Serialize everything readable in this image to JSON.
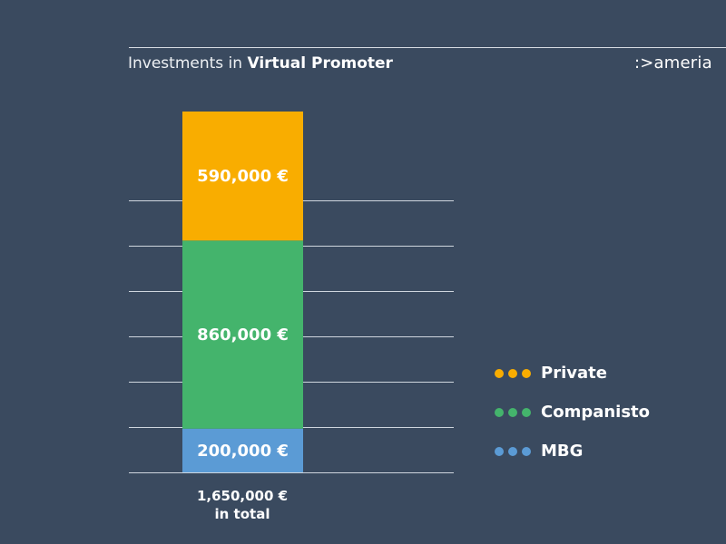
{
  "header": {
    "title_prefix": "Investments in",
    "title_bold": "Virtual Promoter",
    "logo": ":>ameria"
  },
  "chart_data": {
    "type": "bar",
    "stacked": true,
    "categories": [
      ""
    ],
    "series": [
      {
        "name": "MBG",
        "values": [
          200000
        ],
        "label": "200,000 €",
        "color": "#5b9bd5"
      },
      {
        "name": "Companisto",
        "values": [
          860000
        ],
        "label": "860,000 €",
        "color": "#44b46c"
      },
      {
        "name": "Private",
        "values": [
          590000
        ],
        "label": "590,000 €",
        "color": "#f9ad00"
      }
    ],
    "total": 1650000,
    "ylim": [
      0,
      1700000
    ],
    "grid": true,
    "legend_position": "right",
    "total_label_line1": "1,650,000 €",
    "total_label_line2": "in total"
  },
  "legend": [
    {
      "label": "Private",
      "color": "#f9ad00"
    },
    {
      "label": "Companisto",
      "color": "#44b46c"
    },
    {
      "label": "MBG",
      "color": "#5b9bd5"
    }
  ]
}
